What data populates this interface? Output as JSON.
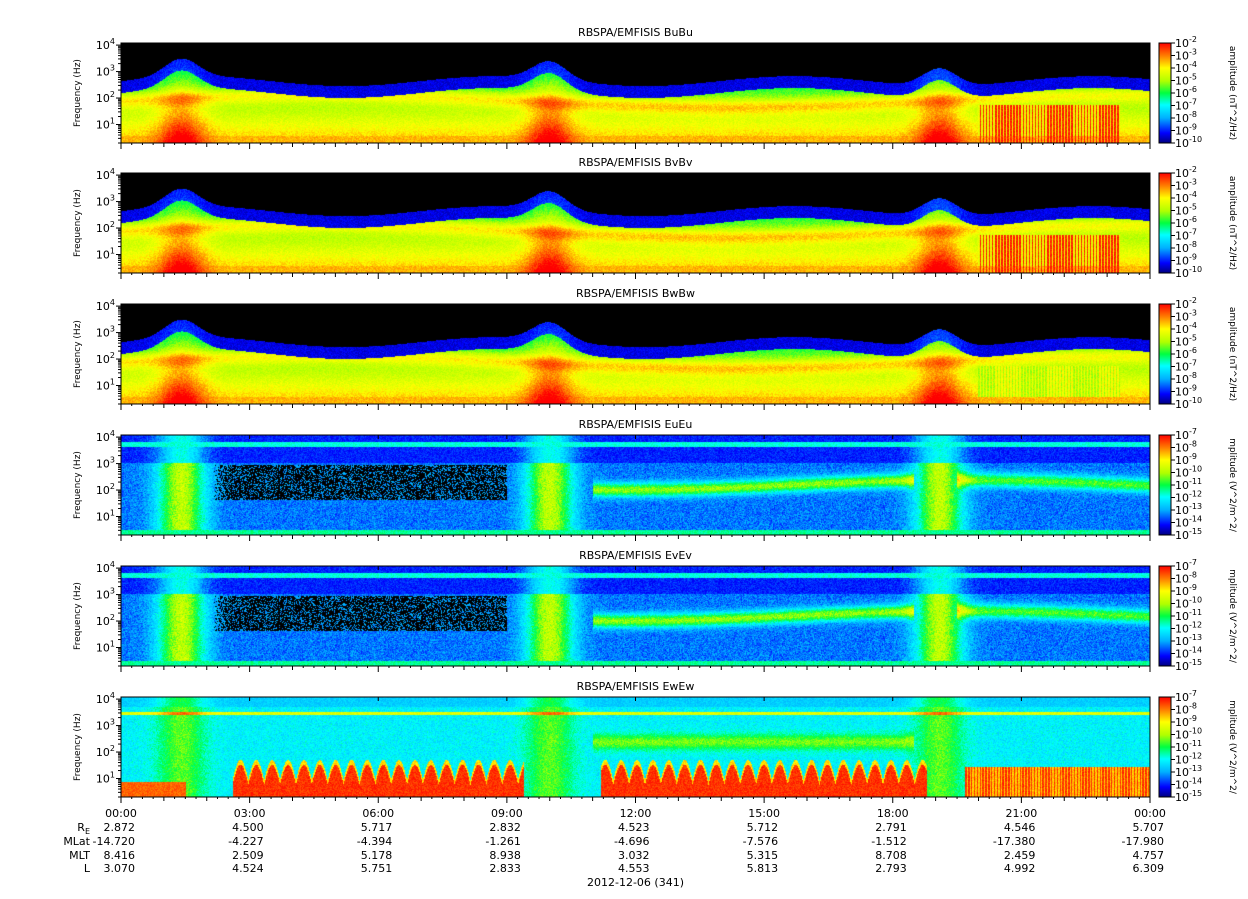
{
  "chart_data": {
    "type": "heatmap",
    "panels": [
      {
        "title": "RBSPA/EMFISIS  BuBu",
        "ylabel": "Frequency (Hz)",
        "colorbar_label": "amplitude (nT^2/Hz)",
        "colorbar_ticks": [
          "-2",
          "-3",
          "-4",
          "-5",
          "-6",
          "-7",
          "-8",
          "-9",
          "-10"
        ],
        "colorbar_range": [
          -10,
          -2
        ],
        "kind": "B"
      },
      {
        "title": "RBSPA/EMFISIS  BvBv",
        "ylabel": "Frequency (Hz)",
        "colorbar_label": "amplitude (nT^2/Hz)",
        "colorbar_ticks": [
          "-2",
          "-3",
          "-4",
          "-5",
          "-6",
          "-7",
          "-8",
          "-9",
          "-10"
        ],
        "colorbar_range": [
          -10,
          -2
        ],
        "kind": "B"
      },
      {
        "title": "RBSPA/EMFISIS  BwBw",
        "ylabel": "Frequency (Hz)",
        "colorbar_label": "amplitude (nT^2/Hz)",
        "colorbar_ticks": [
          "-2",
          "-3",
          "-4",
          "-5",
          "-6",
          "-7",
          "-8",
          "-9",
          "-10"
        ],
        "colorbar_range": [
          -10,
          -2
        ],
        "kind": "Bw"
      },
      {
        "title": "RBSPA/EMFISIS  EuEu",
        "ylabel": "Frequency (Hz)",
        "colorbar_label": "mplitude (V^2/m^2/",
        "colorbar_ticks": [
          "-7",
          "-8",
          "-9",
          "-10",
          "-11",
          "-12",
          "-13",
          "-14",
          "-15"
        ],
        "colorbar_range": [
          -15,
          -7
        ],
        "kind": "E"
      },
      {
        "title": "RBSPA/EMFISIS  EvEv",
        "ylabel": "Frequency (Hz)",
        "colorbar_label": "mplitude (V^2/m^2/",
        "colorbar_ticks": [
          "-7",
          "-8",
          "-9",
          "-10",
          "-11",
          "-12",
          "-13",
          "-14",
          "-15"
        ],
        "colorbar_range": [
          -15,
          -7
        ],
        "kind": "E"
      },
      {
        "title": "RBSPA/EMFISIS  EwEw",
        "ylabel": "Frequency (Hz)",
        "colorbar_label": "mplitude (V^2/m^2/",
        "colorbar_ticks": [
          "-7",
          "-8",
          "-9",
          "-10",
          "-11",
          "-12",
          "-13",
          "-14",
          "-15"
        ],
        "colorbar_range": [
          -15,
          -7
        ],
        "kind": "Ew"
      }
    ],
    "y_axis": {
      "scale": "log",
      "ticks": [
        {
          "base": "10",
          "exp": "1"
        },
        {
          "base": "10",
          "exp": "2"
        },
        {
          "base": "10",
          "exp": "3"
        },
        {
          "base": "10",
          "exp": "4"
        }
      ],
      "range_hz": [
        2,
        12000
      ]
    },
    "x_axis": {
      "ticks": [
        "00:00",
        "03:00",
        "06:00",
        "09:00",
        "12:00",
        "15:00",
        "18:00",
        "21:00",
        "00:00"
      ],
      "range_hours": [
        0,
        24
      ],
      "date_label": "2012-12-06 (341)"
    },
    "ephemeris": [
      {
        "label_main": "R",
        "label_sub": "E",
        "values": [
          "2.872",
          "4.500",
          "5.717",
          "2.832",
          "4.523",
          "5.712",
          "2.791",
          "4.546",
          "5.707"
        ]
      },
      {
        "label_main": "MLat",
        "label_sub": "",
        "values": [
          "-14.720",
          "-4.227",
          "-4.394",
          "-1.261",
          "-4.696",
          "-7.576",
          "-1.512",
          "-17.380",
          "-17.980"
        ]
      },
      {
        "label_main": "MLT",
        "label_sub": "",
        "values": [
          "8.416",
          "2.509",
          "5.178",
          "8.938",
          "3.032",
          "5.315",
          "8.708",
          "2.459",
          "4.757"
        ]
      },
      {
        "label_main": "L",
        "label_sub": "",
        "values": [
          "3.070",
          "4.524",
          "5.751",
          "2.833",
          "4.553",
          "5.813",
          "2.793",
          "4.992",
          "6.309"
        ]
      }
    ]
  }
}
